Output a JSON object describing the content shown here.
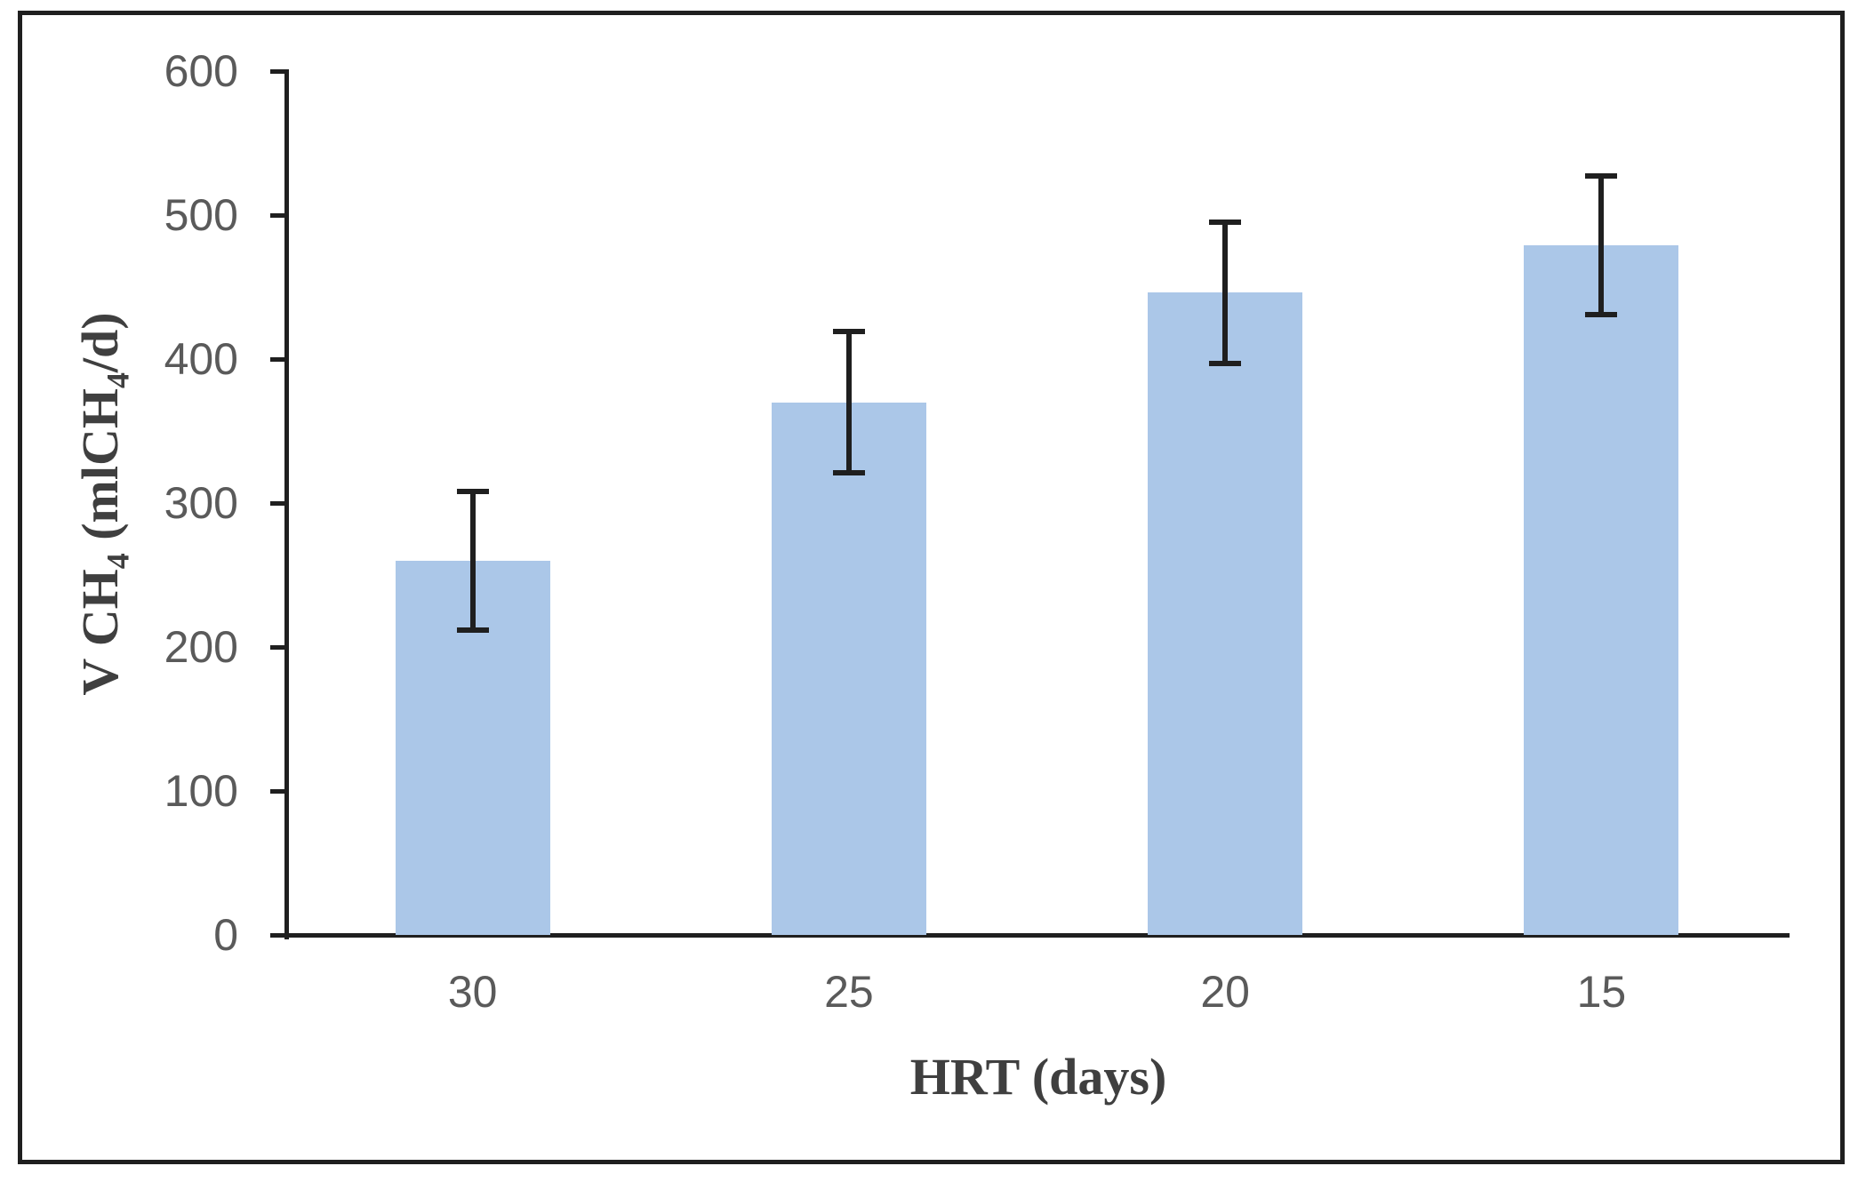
{
  "figure": {
    "background": "#ffffff",
    "border_color": "#1f1f1f"
  },
  "chart_data": {
    "type": "bar",
    "title": "",
    "categories": [
      "30",
      "25",
      "20",
      "15"
    ],
    "values": [
      260,
      370,
      446,
      479
    ],
    "error_bars": [
      48,
      49,
      49,
      48
    ],
    "xlabel": "HRT (days)",
    "ylabel": "V CH₄ (mlCH₄/d)",
    "ylabel_parts": {
      "pre": "V CH",
      "sub1": "4",
      "mid": " (mlCH",
      "sub2": "4",
      "post": "/d)"
    },
    "ylim": [
      0,
      600
    ],
    "yticks": [
      0,
      100,
      200,
      300,
      400,
      500,
      600
    ],
    "grid": false,
    "legend": "none",
    "bar_color": "#abc7e8",
    "axis_color": "#1f1f1f",
    "error_color": "#1f1f1f",
    "tick_label_color": "#5a5a5a",
    "axis_title_color": "#3f3f3f"
  }
}
